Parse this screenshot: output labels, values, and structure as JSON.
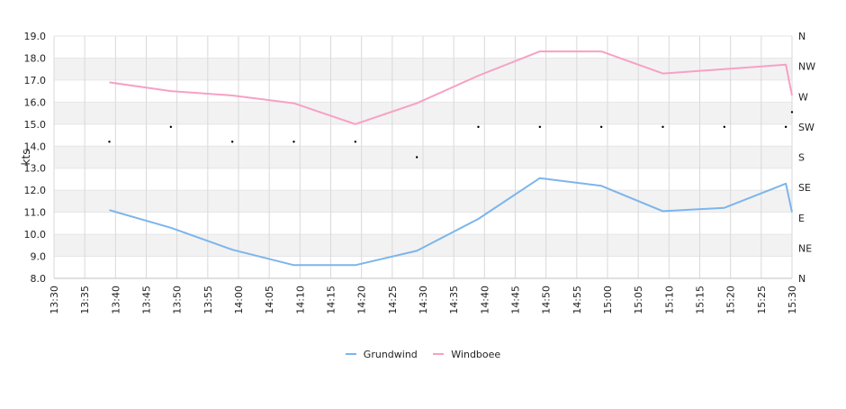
{
  "chart_data": {
    "type": "line",
    "ylabel": "kts",
    "ylim": [
      8,
      19
    ],
    "y_ticks": [
      "8.0",
      "9.0",
      "10.0",
      "11.0",
      "12.0",
      "13.0",
      "14.0",
      "15.0",
      "16.0",
      "17.0",
      "18.0",
      "19.0"
    ],
    "x_ticks": [
      "13:30",
      "13:35",
      "13:40",
      "13:45",
      "13:50",
      "13:55",
      "14:00",
      "14:05",
      "14:10",
      "14:15",
      "14:20",
      "14:25",
      "14:30",
      "14:35",
      "14:40",
      "14:45",
      "14:50",
      "14:55",
      "15:00",
      "15:05",
      "15:10",
      "15:15",
      "15:20",
      "15:25",
      "15:30"
    ],
    "x_range": [
      "13:30",
      "15:30"
    ],
    "y2_ticks": [
      "N",
      "NE",
      "E",
      "SE",
      "S",
      "SW",
      "W",
      "NW",
      "N"
    ],
    "y2_range": [
      0,
      360
    ],
    "series": [
      {
        "name": "Grundwind",
        "color": "#7cb5ec",
        "x": [
          "13:39",
          "13:49",
          "13:59",
          "14:09",
          "14:19",
          "14:29",
          "14:39",
          "14:49",
          "14:59",
          "15:09",
          "15:19",
          "15:29",
          "15:30"
        ],
        "values": [
          11.1,
          10.3,
          9.3,
          8.6,
          8.6,
          9.25,
          10.7,
          12.55,
          12.2,
          11.05,
          11.2,
          12.3,
          11.0
        ]
      },
      {
        "name": "Windboee",
        "color": "#f7a1c4",
        "x": [
          "13:39",
          "13:49",
          "13:59",
          "14:09",
          "14:19",
          "14:29",
          "14:39",
          "14:49",
          "14:59",
          "15:09",
          "15:19",
          "15:29",
          "15:30"
        ],
        "values": [
          16.9,
          16.5,
          16.3,
          15.95,
          15.0,
          15.95,
          17.2,
          18.3,
          18.3,
          17.3,
          17.5,
          17.7,
          16.3
        ]
      }
    ],
    "direction": {
      "x": [
        "13:39",
        "13:49",
        "13:59",
        "14:09",
        "14:19",
        "14:29",
        "14:39",
        "14:49",
        "14:59",
        "15:09",
        "15:19",
        "15:29",
        "15:30"
      ],
      "degrees": [
        203,
        225,
        203,
        203,
        203,
        180,
        225,
        225,
        225,
        225,
        225,
        225,
        247
      ]
    },
    "grid": true,
    "legend": "bottom-center"
  }
}
